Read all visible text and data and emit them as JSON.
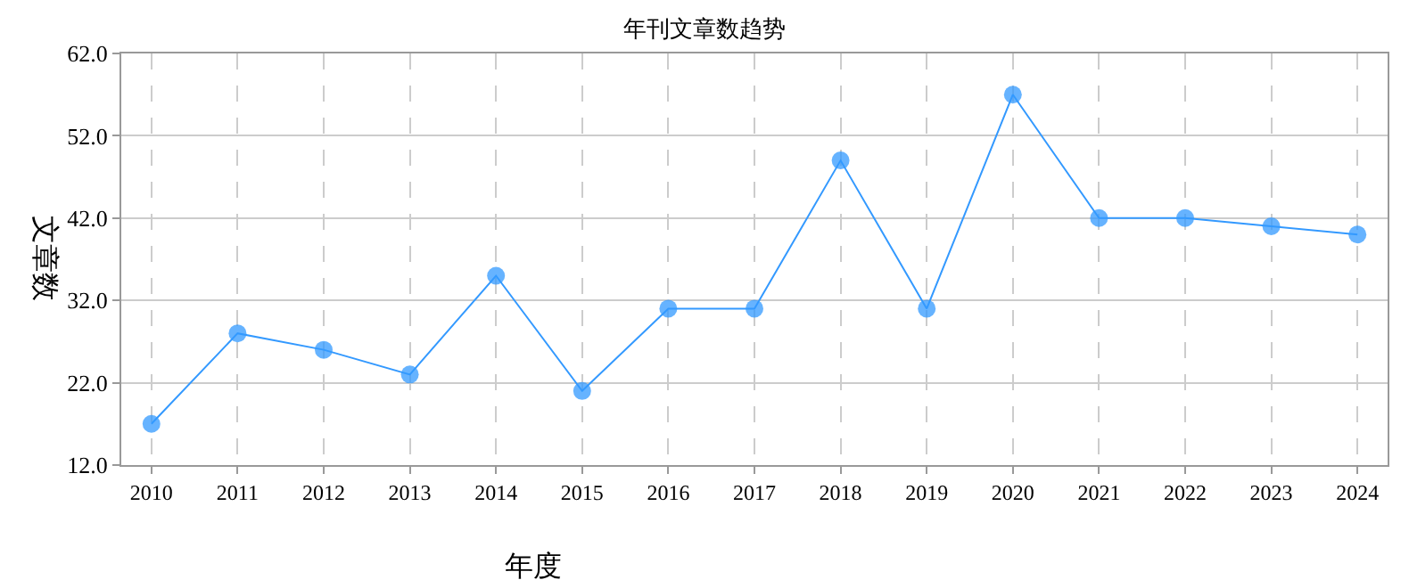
{
  "chart_data": {
    "type": "line",
    "title": "年刊文章数趋势",
    "xlabel": "年度",
    "ylabel": "文章数",
    "categories": [
      "2010",
      "2011",
      "2012",
      "2013",
      "2014",
      "2015",
      "2016",
      "2017",
      "2018",
      "2019",
      "2020",
      "2021",
      "2022",
      "2023",
      "2024"
    ],
    "series": [
      {
        "color": "#3399ff",
        "values": [
          17,
          28,
          26,
          23,
          35,
          21,
          31,
          31,
          49,
          31,
          57,
          42,
          42,
          41,
          40
        ]
      }
    ],
    "ylim": [
      12,
      62
    ],
    "yticks": [
      {
        "value": 12,
        "label": "12.0"
      },
      {
        "value": 22,
        "label": "22.0"
      },
      {
        "value": 32,
        "label": "32.0"
      },
      {
        "value": 42,
        "label": "42.0"
      },
      {
        "value": 52,
        "label": "52.0"
      },
      {
        "value": 62,
        "label": "62.0"
      }
    ],
    "grid": true,
    "marker": "circle",
    "line_style": "solid"
  }
}
